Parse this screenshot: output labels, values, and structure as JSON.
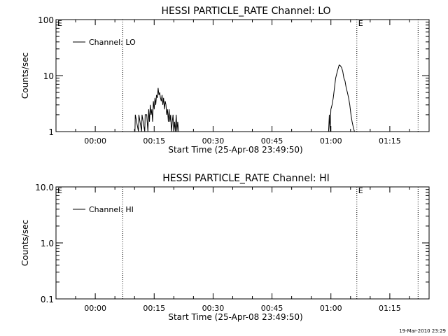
{
  "chart_data": [
    {
      "type": "line",
      "title": "HESSI PARTICLE_RATE Channel: LO",
      "xlabel": "Start Time (25-Apr-08 23:49:50)",
      "ylabel": "Counts/sec",
      "yscale": "log",
      "ylim": [
        1,
        100
      ],
      "ytick_labels": [
        "1",
        "10",
        "100"
      ],
      "xlim_minutes": [
        -10,
        85
      ],
      "xtick_labels": [
        "00:00",
        "00:15",
        "00:30",
        "00:45",
        "01:00",
        "01:15"
      ],
      "legend": "top-left",
      "series": [
        {
          "name": "Channel: LO",
          "x_minutes": [
            10.1,
            10.2,
            11.0,
            11.1,
            11.8,
            11.9,
            12.6,
            12.7,
            13.1,
            13.4,
            13.6,
            13.8,
            14.0,
            14.2,
            14.4,
            14.6,
            14.8,
            15.0,
            15.2,
            15.4,
            15.6,
            15.8,
            16.0,
            16.2,
            16.4,
            16.6,
            16.8,
            17.0,
            17.2,
            17.4,
            17.6,
            17.8,
            18.0,
            18.2,
            18.4,
            18.6,
            18.8,
            19.0,
            19.2,
            19.4,
            19.6,
            19.8,
            20.0,
            20.2,
            20.4,
            20.6,
            20.8,
            21.0,
            21.2,
            21.4,
            21.6,
            59.4,
            59.6,
            59.8,
            60.0,
            60.3,
            60.6,
            60.9,
            61.2,
            61.5,
            61.8,
            62.1,
            62.4,
            62.7,
            63.0,
            63.3,
            63.6,
            63.9,
            64.2,
            64.5,
            64.8,
            65.1,
            65.4,
            65.7,
            66.0,
            66.3
          ],
          "y": [
            1,
            2,
            1,
            2,
            1,
            2,
            1,
            2,
            2,
            1,
            2.5,
            1.5,
            3,
            2,
            2.5,
            1.5,
            3.5,
            2.5,
            4,
            3,
            4.5,
            4,
            6,
            4.5,
            5,
            4,
            3.5,
            4.5,
            3,
            4,
            2.5,
            3.5,
            3,
            2,
            2.5,
            1.5,
            2.5,
            1.5,
            2,
            1,
            1.5,
            2,
            1,
            1.5,
            1,
            2,
            1,
            1.5,
            1,
            1,
            1,
            1,
            2,
            1,
            2.5,
            3,
            4,
            6,
            9,
            11,
            13,
            15.5,
            15,
            14,
            12,
            9,
            8,
            6,
            5,
            4,
            3,
            2,
            1.5,
            1.2,
            1,
            1
          ],
          "color": "#000000"
        }
      ],
      "dotted_vlines_minutes": [
        7,
        66.6,
        82.2
      ],
      "vline_marks": [
        "E",
        "E"
      ],
      "color": "#000000"
    },
    {
      "type": "line",
      "title": "HESSI PARTICLE_RATE Channel: HI",
      "xlabel": "Start Time (25-Apr-08 23:49:50)",
      "ylabel": "Counts/sec",
      "yscale": "log",
      "ylim": [
        0.1,
        10
      ],
      "ytick_labels": [
        "0.1",
        "1.0",
        "10.0"
      ],
      "xlim_minutes": [
        -10,
        85
      ],
      "xtick_labels": [
        "00:00",
        "00:15",
        "00:30",
        "00:45",
        "01:00",
        "01:15"
      ],
      "legend": "top-left",
      "series": [
        {
          "name": "Channel: HI",
          "x_minutes": [],
          "y": [],
          "color": "#000000"
        }
      ],
      "dotted_vlines_minutes": [
        7,
        66.6,
        82.2
      ],
      "vline_marks": [
        "E",
        "E"
      ],
      "color": "#000000"
    }
  ],
  "footer": {
    "timestamp": "19-Mar-2010 23:29"
  }
}
